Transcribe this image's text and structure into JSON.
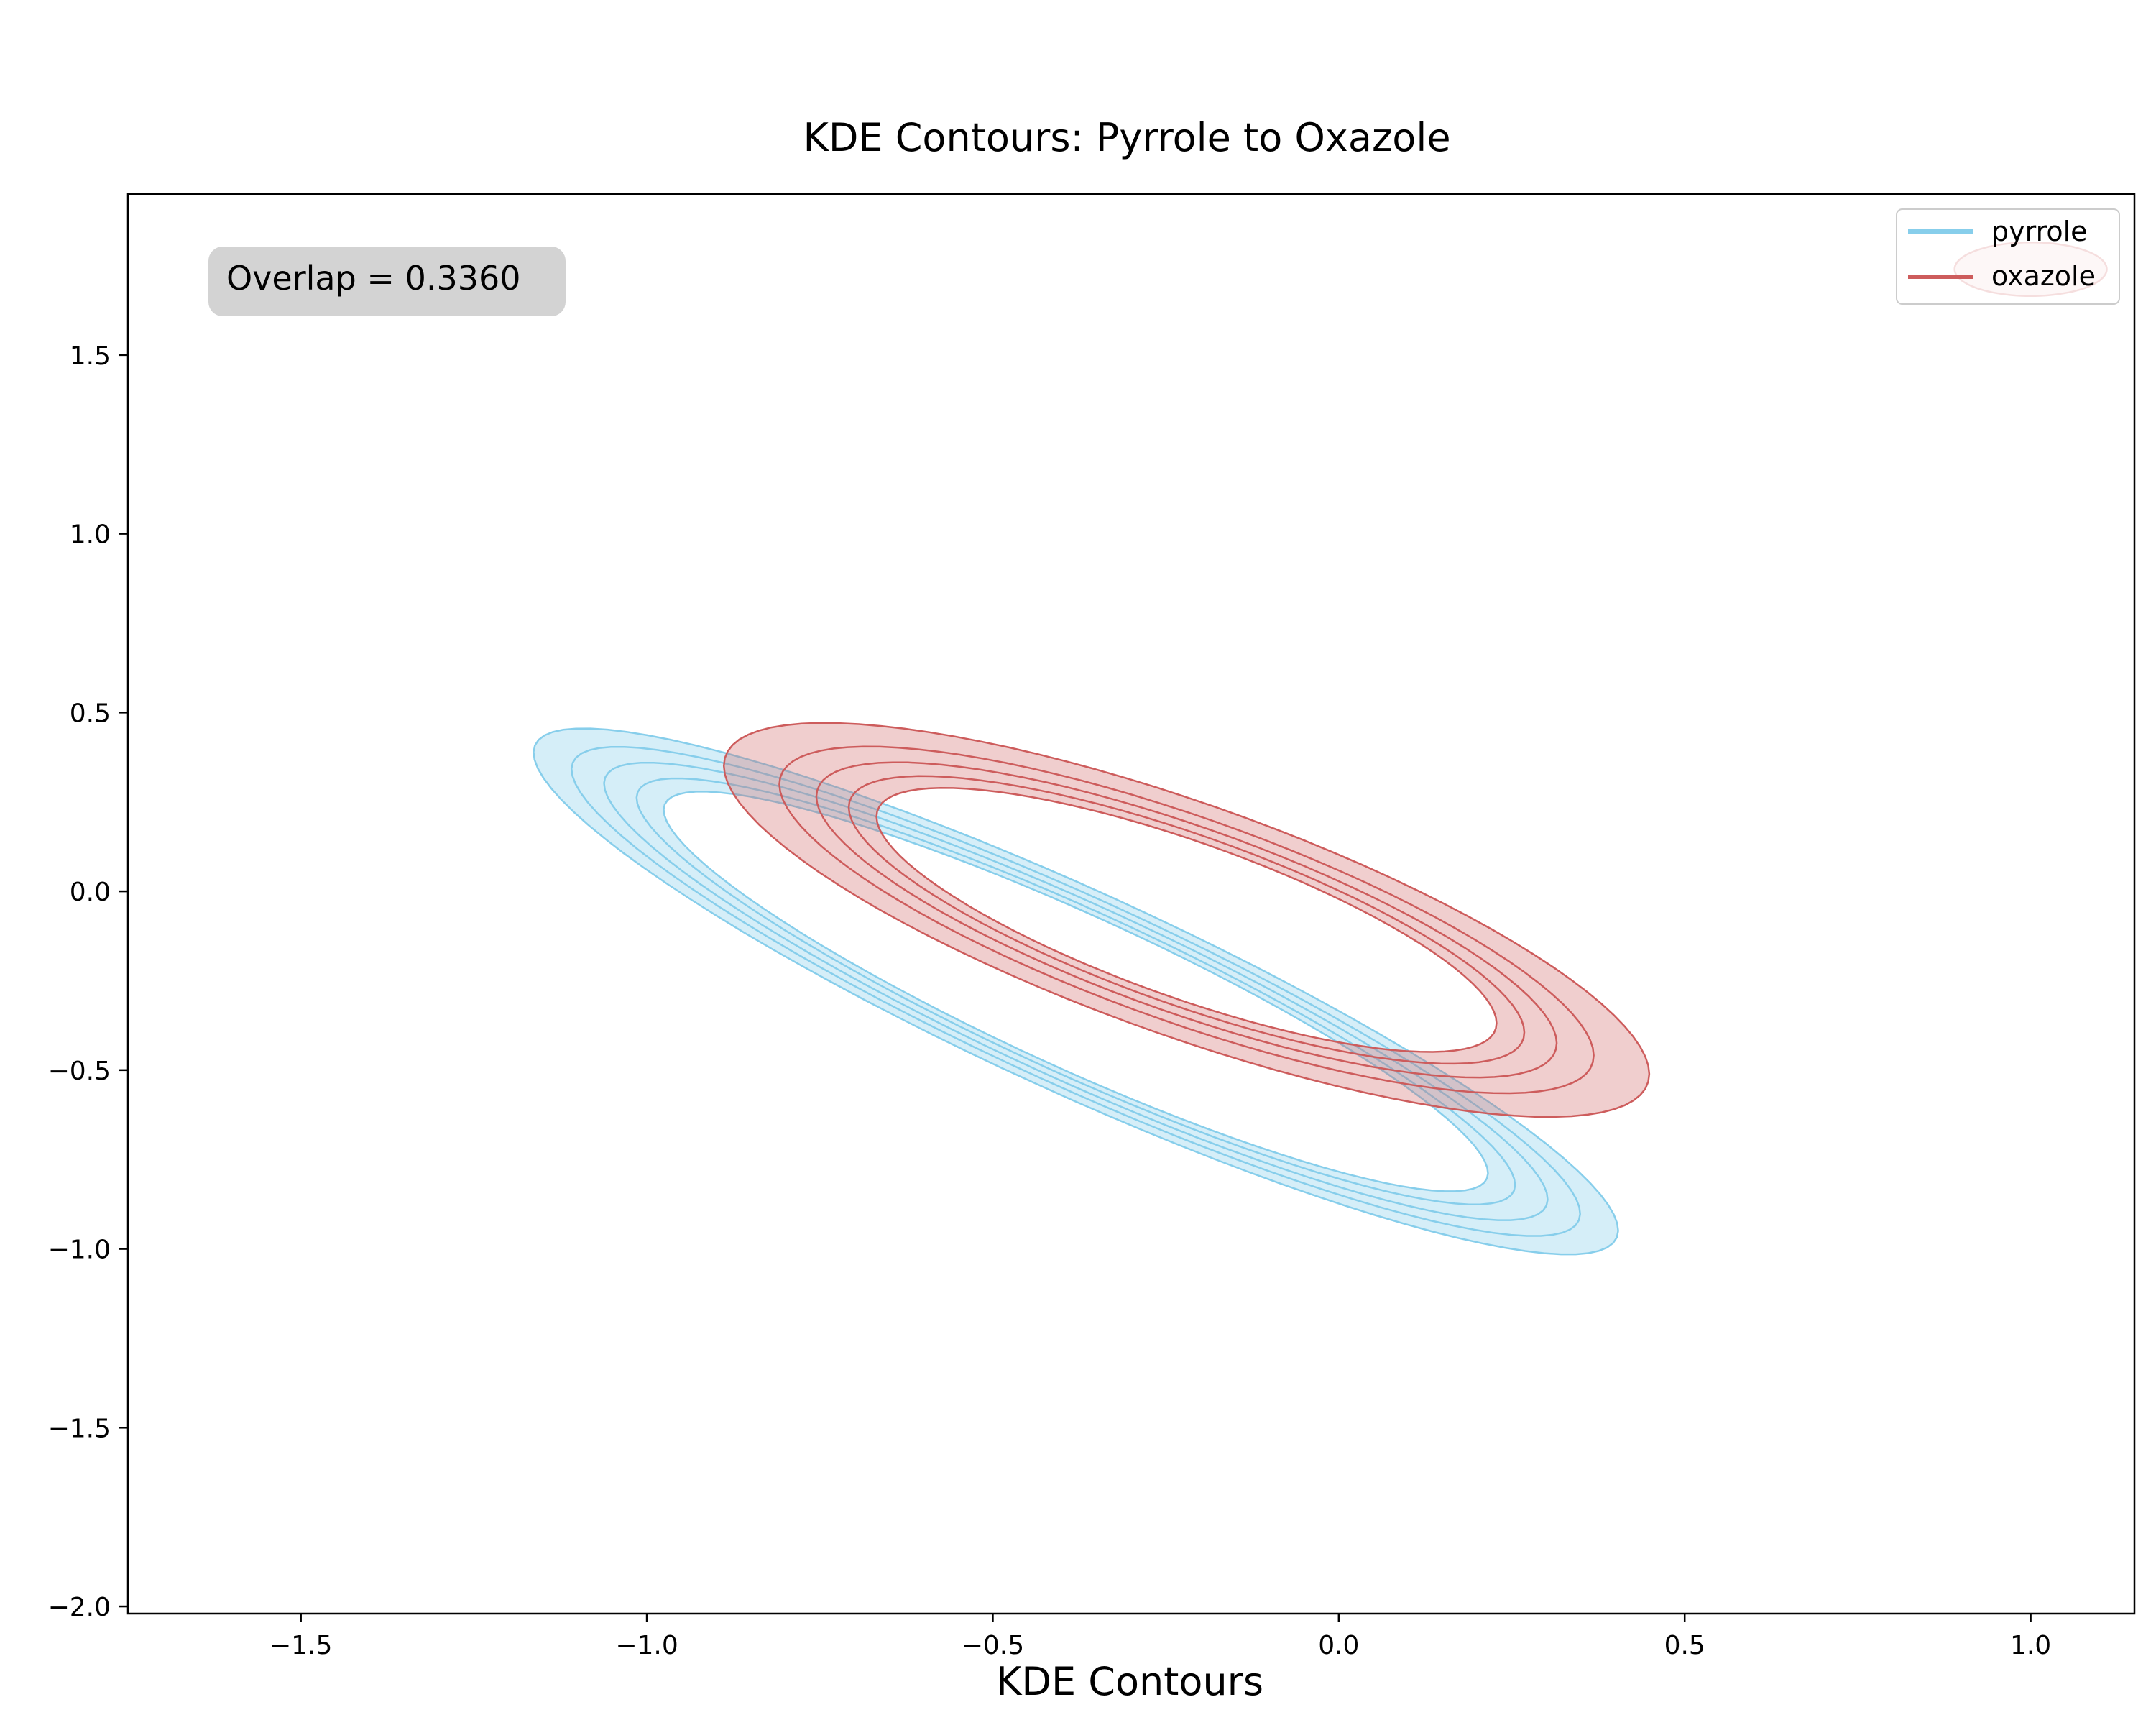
{
  "chart_data": {
    "type": "kde-contour",
    "title": "KDE Contours: Pyrrole to Oxazole",
    "xlabel": "KDE Contours",
    "ylabel": "",
    "xlim": [
      -1.75,
      1.15
    ],
    "ylim": [
      -2.02,
      1.95
    ],
    "xticks": [
      -1.5,
      -1.0,
      -0.5,
      0.0,
      0.5,
      1.0
    ],
    "xtick_labels": [
      "−1.5",
      "−1.0",
      "−0.5",
      "0.0",
      "0.5",
      "1.0"
    ],
    "yticks": [
      -2.0,
      -1.5,
      -1.0,
      -0.5,
      0.0,
      0.5,
      1.0,
      1.5
    ],
    "ytick_labels": [
      "−2.0",
      "−1.5",
      "−1.0",
      "−0.5",
      "0.0",
      "0.5",
      "1.0",
      "1.5"
    ],
    "grid": false,
    "legend_position": "top-right",
    "annotation": "Overlap = 0.3360",
    "series": [
      {
        "name": "pyrrole",
        "color": "#87CEEB",
        "fill_alpha": 0.35,
        "center": [
          -0.38,
          -0.28
        ],
        "outer_radii": [
          0.23,
          1.05
        ],
        "angle_deg": 47,
        "level_scales": [
          1.0,
          0.93,
          0.87,
          0.81,
          0.76
        ]
      },
      {
        "name": "oxazole",
        "color": "#CD5C5C",
        "fill_alpha": 0.3,
        "center": [
          -0.22,
          -0.08
        ],
        "outer_radii": [
          0.28,
          0.82
        ],
        "angle_deg": 52,
        "level_scales": [
          1.0,
          0.88,
          0.8,
          0.73,
          0.67
        ],
        "extra_region": {
          "center": [
            1.0,
            1.74
          ],
          "radii": [
            0.11,
            0.075
          ]
        }
      }
    ]
  }
}
